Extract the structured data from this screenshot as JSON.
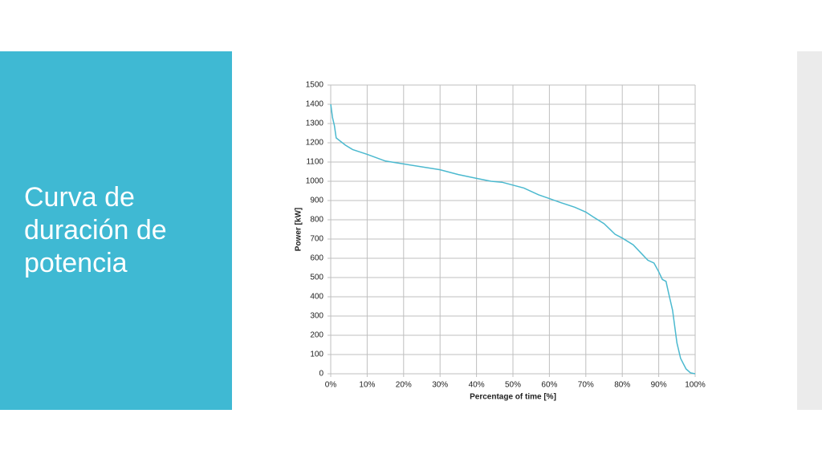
{
  "slide": {
    "title_lines": [
      "Curva de",
      "duración de",
      "potencia"
    ]
  },
  "chart_data": {
    "type": "line",
    "xlabel": "Percentage of time [%]",
    "ylabel": "Power [kW]",
    "x": [
      0,
      0.5,
      1,
      1.5,
      4,
      6,
      10,
      15,
      20,
      30,
      35,
      40,
      44,
      47,
      50,
      53,
      57,
      60,
      63,
      67,
      70,
      72,
      75,
      78,
      80,
      83,
      85,
      87,
      88.7,
      90,
      91,
      92,
      92.7,
      93.8,
      95,
      96,
      97.5,
      98.7,
      100
    ],
    "values": [
      1400,
      1330,
      1290,
      1225,
      1188,
      1165,
      1140,
      1105,
      1090,
      1060,
      1035,
      1015,
      1000,
      995,
      980,
      965,
      930,
      910,
      890,
      865,
      840,
      815,
      780,
      725,
      705,
      670,
      630,
      590,
      575,
      530,
      490,
      480,
      420,
      330,
      160,
      80,
      25,
      5,
      0
    ],
    "color": "#4bb9cf",
    "xlim": [
      0,
      100
    ],
    "xticks": [
      {
        "value": 0,
        "label": "0%"
      },
      {
        "value": 10,
        "label": "10%"
      },
      {
        "value": 20,
        "label": "20%"
      },
      {
        "value": 30,
        "label": "30%"
      },
      {
        "value": 40,
        "label": "40%"
      },
      {
        "value": 50,
        "label": "50%"
      },
      {
        "value": 60,
        "label": "60%"
      },
      {
        "value": 70,
        "label": "70%"
      },
      {
        "value": 80,
        "label": "80%"
      },
      {
        "value": 90,
        "label": "90%"
      },
      {
        "value": 100,
        "label": "100%"
      }
    ],
    "ylim": [
      0,
      1500
    ],
    "yticks": [
      0,
      100,
      200,
      300,
      400,
      500,
      600,
      700,
      800,
      900,
      1000,
      1100,
      1200,
      1300,
      1400,
      1500
    ],
    "grid": true
  }
}
